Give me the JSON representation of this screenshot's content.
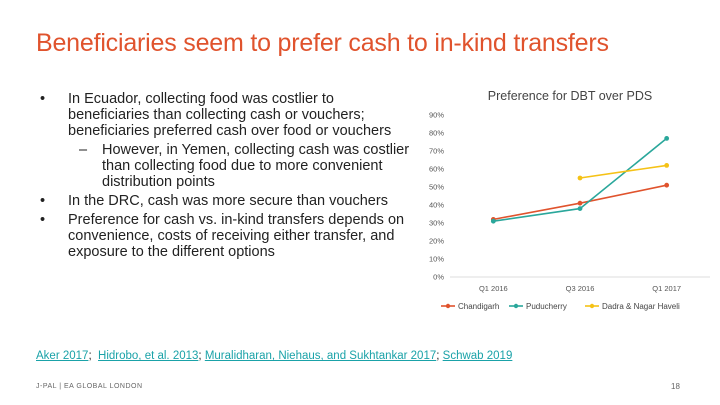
{
  "slide": {
    "title": "Beneficiaries seem to prefer cash to in-kind transfers",
    "bullets": [
      {
        "marker": "•",
        "text": "In Ecuador, collecting food was costlier to beneficiaries than collecting cash or vouchers; beneficiaries preferred cash over food or vouchers"
      },
      {
        "marker": "–",
        "text": "However, in Yemen, collecting cash was costlier than collecting food due to more convenient distribution points"
      },
      {
        "marker": "•",
        "text": "In the DRC, cash was more secure than vouchers"
      },
      {
        "marker": "•",
        "text": "Preference for cash vs. in-kind transfers depends on convenience, costs of receiving either transfer, and exposure to the different options"
      }
    ],
    "references": {
      "items": [
        "Aker 2017",
        "Hidrobo, et al. 2013",
        "Muralidharan, Niehaus, and Sukhtankar 2017",
        "Schwab 2019"
      ],
      "separator": ";"
    },
    "footer": "J-PAL | EA GLOBAL LONDON",
    "page_number": "18"
  },
  "chart_data": {
    "type": "line",
    "title": "Preference for DBT over PDS",
    "categories": [
      "Q1 2016",
      "Q3 2016",
      "Q1 2017"
    ],
    "y_ticks": [
      "0%",
      "10%",
      "20%",
      "30%",
      "40%",
      "50%",
      "60%",
      "70%",
      "80%",
      "90%"
    ],
    "ylim": [
      0,
      90
    ],
    "grid": false,
    "legend_position": "bottom",
    "series": [
      {
        "name": "Chandigarh",
        "color": "#e0532d",
        "values": [
          32,
          41,
          51
        ]
      },
      {
        "name": "Puducherry",
        "color": "#2aa79b",
        "values": [
          31,
          38,
          77
        ]
      },
      {
        "name": "Dadra & Nagar Haveli",
        "color": "#f5c216",
        "values": [
          null,
          55,
          62
        ]
      }
    ]
  }
}
